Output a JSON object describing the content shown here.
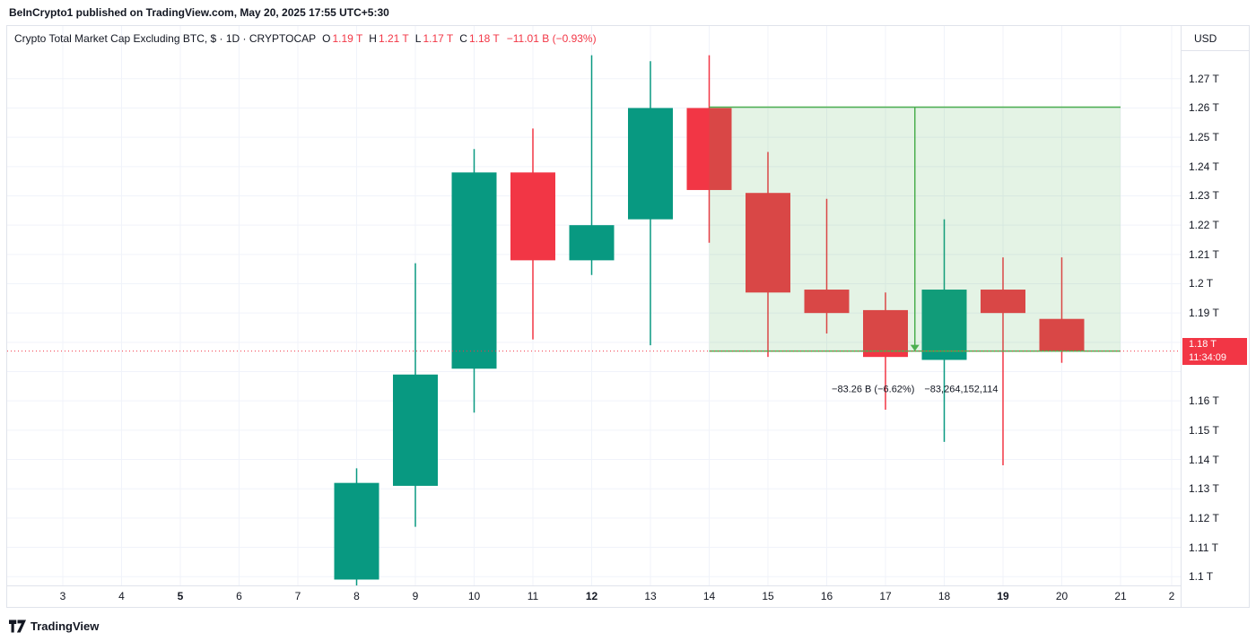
{
  "page": {
    "header": "BeInCrypto1 published on TradingView.com, May 20, 2025 17:55 UTC+5:30",
    "footer_logo_text": "TradingView"
  },
  "legend": {
    "symbol_title": "Crypto Total Market Cap Excluding BTC, $ · 1D · CRYPTOCAP",
    "ohlc": [
      {
        "key": "O",
        "value": "1.19 T"
      },
      {
        "key": "H",
        "value": "1.21 T"
      },
      {
        "key": "L",
        "value": "1.17 T"
      },
      {
        "key": "C",
        "value": "1.18 T"
      }
    ],
    "change": "−11.01 B (−0.93%)"
  },
  "axis": {
    "currency": "USD",
    "price_ticks": [
      {
        "value": 1.27,
        "label": "1.27 T"
      },
      {
        "value": 1.26,
        "label": "1.26 T"
      },
      {
        "value": 1.25,
        "label": "1.25 T"
      },
      {
        "value": 1.24,
        "label": "1.24 T"
      },
      {
        "value": 1.23,
        "label": "1.23 T"
      },
      {
        "value": 1.22,
        "label": "1.22 T"
      },
      {
        "value": 1.21,
        "label": "1.21 T"
      },
      {
        "value": 1.2,
        "label": "1.2 T"
      },
      {
        "value": 1.19,
        "label": "1.19 T"
      },
      {
        "value": 1.18,
        "label": "1.18 T"
      },
      {
        "value": 1.17,
        "label": ""
      },
      {
        "value": 1.16,
        "label": "1.16 T"
      },
      {
        "value": 1.15,
        "label": "1.15 T"
      },
      {
        "value": 1.14,
        "label": "1.14 T"
      },
      {
        "value": 1.13,
        "label": "1.13 T"
      },
      {
        "value": 1.12,
        "label": "1.12 T"
      },
      {
        "value": 1.11,
        "label": "1.11 T"
      },
      {
        "value": 1.1,
        "label": "1.1 T"
      }
    ],
    "time_labels": [
      {
        "label": "3",
        "bold": false
      },
      {
        "label": "4",
        "bold": false
      },
      {
        "label": "5",
        "bold": true
      },
      {
        "label": "6",
        "bold": false
      },
      {
        "label": "7",
        "bold": false
      },
      {
        "label": "8",
        "bold": false
      },
      {
        "label": "9",
        "bold": false
      },
      {
        "label": "10",
        "bold": false
      },
      {
        "label": "11",
        "bold": false
      },
      {
        "label": "12",
        "bold": true
      },
      {
        "label": "13",
        "bold": false
      },
      {
        "label": "14",
        "bold": false
      },
      {
        "label": "15",
        "bold": false
      },
      {
        "label": "16",
        "bold": false
      },
      {
        "label": "17",
        "bold": false
      },
      {
        "label": "18",
        "bold": false
      },
      {
        "label": "19",
        "bold": true
      },
      {
        "label": "20",
        "bold": false
      },
      {
        "label": "21",
        "bold": false
      },
      {
        "label": "2",
        "bold": false
      }
    ]
  },
  "current_price": {
    "display": "1.18 T",
    "countdown": "11:34:09",
    "value": 1.177,
    "color": "#f23645"
  },
  "measurement": {
    "from_date": "14",
    "to_date": "21",
    "top_value": 1.2603,
    "bottom_value": 1.177,
    "label_change": "−83.26 B (−6.62%)",
    "label_absolute": "−83,264,152,114"
  },
  "chart_data": {
    "type": "candlestick",
    "title": "Crypto Total Market Cap Excluding BTC, $ · 1D · CRYPTOCAP",
    "unit": "trillion USD",
    "interval": "1D",
    "ylim": [
      1.097,
      1.288
    ],
    "candles": [
      {
        "date": "8",
        "open": 1.099,
        "high": 1.137,
        "low": 1.097,
        "close": 1.132
      },
      {
        "date": "9",
        "open": 1.131,
        "high": 1.207,
        "low": 1.117,
        "close": 1.169
      },
      {
        "date": "10",
        "open": 1.171,
        "high": 1.246,
        "low": 1.156,
        "close": 1.238
      },
      {
        "date": "11",
        "open": 1.238,
        "high": 1.253,
        "low": 1.181,
        "close": 1.208
      },
      {
        "date": "12",
        "open": 1.208,
        "high": 1.278,
        "low": 1.203,
        "close": 1.22
      },
      {
        "date": "13",
        "open": 1.222,
        "high": 1.276,
        "low": 1.179,
        "close": 1.26
      },
      {
        "date": "14",
        "open": 1.26,
        "high": 1.278,
        "low": 1.214,
        "close": 1.232
      },
      {
        "date": "15",
        "open": 1.231,
        "high": 1.245,
        "low": 1.175,
        "close": 1.197
      },
      {
        "date": "16",
        "open": 1.198,
        "high": 1.229,
        "low": 1.183,
        "close": 1.19
      },
      {
        "date": "17",
        "open": 1.191,
        "high": 1.197,
        "low": 1.157,
        "close": 1.175
      },
      {
        "date": "18",
        "open": 1.174,
        "high": 1.222,
        "low": 1.146,
        "close": 1.198
      },
      {
        "date": "19",
        "open": 1.198,
        "high": 1.209,
        "low": 1.138,
        "close": 1.19
      },
      {
        "date": "20",
        "open": 1.188,
        "high": 1.209,
        "low": 1.173,
        "close": 1.177
      }
    ]
  },
  "colors": {
    "up": "#089981",
    "down": "#f23645",
    "grid": "#f0f3fa",
    "frame": "#e0e3eb",
    "text": "#131722",
    "measure_fill": "rgba(76,175,80,0.15)",
    "measure_stroke": "#4caf50"
  }
}
